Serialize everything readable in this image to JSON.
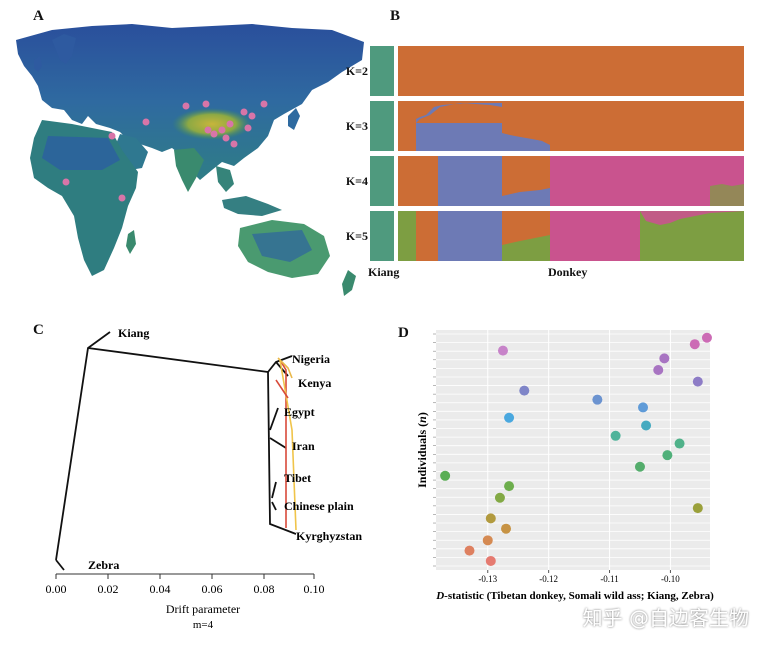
{
  "panels": {
    "a": "A",
    "b": "B",
    "c": "C",
    "d": "D"
  },
  "structure": {
    "k_labels": [
      "K=2",
      "K=3",
      "K=4",
      "K=5"
    ],
    "group_labels": {
      "kiang": "Kiang",
      "donkey": "Donkey"
    },
    "colors": {
      "kiang": "#4f9a7e",
      "orange": "#cc6d35",
      "blue": "#6d7ab5",
      "pink": "#c9538e",
      "green": "#7d9e42"
    }
  },
  "tree": {
    "taxa": [
      "Kiang",
      "Nigeria",
      "Kenya",
      "Egypt",
      "Iran",
      "Tibet",
      "Chinese plain",
      "Kyrghyzstan",
      "Zebra"
    ],
    "axis_title": "Drift parameter",
    "migration_note": "m=4",
    "ticks": [
      "0.00",
      "0.02",
      "0.04",
      "0.06",
      "0.08",
      "0.10"
    ]
  },
  "dstat": {
    "ylabel_main": "Individuals",
    "ylabel_n": "n",
    "xlabel_main": "D",
    "xlabel_rest": "-statistic (Tibetan donkey, Somali wild ass; Kiang, Zebra)",
    "ticks": [
      "-0.13",
      "-0.12",
      "-0.11",
      "-0.10"
    ]
  },
  "chart_data": {
    "type": "scatter",
    "title": "",
    "xlabel": "D-statistic (Tibetan donkey, Somali wild ass; Kiang, Zebra)",
    "ylabel": "Individuals (n)",
    "xlim": [
      -0.1385,
      -0.0935
    ],
    "points": [
      {
        "x": -0.094,
        "y": 24,
        "color": "#cc6bb5"
      },
      {
        "x": -0.1275,
        "y": 23,
        "color": "#c783c9"
      },
      {
        "x": -0.096,
        "y": 23.5,
        "color": "#cc6bb5"
      },
      {
        "x": -0.101,
        "y": 22.4,
        "color": "#a874c2"
      },
      {
        "x": -0.102,
        "y": 21.5,
        "color": "#a874c2"
      },
      {
        "x": -0.0955,
        "y": 20.6,
        "color": "#8d7cc6"
      },
      {
        "x": -0.124,
        "y": 19.9,
        "color": "#7f85c8"
      },
      {
        "x": -0.112,
        "y": 19.2,
        "color": "#6b93d0"
      },
      {
        "x": -0.1045,
        "y": 18.6,
        "color": "#5f9bd8"
      },
      {
        "x": -0.1265,
        "y": 17.8,
        "color": "#4aa8df"
      },
      {
        "x": -0.104,
        "y": 17.2,
        "color": "#45aac0"
      },
      {
        "x": -0.109,
        "y": 16.4,
        "color": "#4fb39a"
      },
      {
        "x": -0.0985,
        "y": 15.8,
        "color": "#50b28a"
      },
      {
        "x": -0.1005,
        "y": 14.9,
        "color": "#50b07a"
      },
      {
        "x": -0.105,
        "y": 14.0,
        "color": "#54ad6c"
      },
      {
        "x": -0.137,
        "y": 13.3,
        "color": "#5aae55"
      },
      {
        "x": -0.1265,
        "y": 12.5,
        "color": "#6dae4d"
      },
      {
        "x": -0.128,
        "y": 11.6,
        "color": "#82a944"
      },
      {
        "x": -0.0955,
        "y": 10.8,
        "color": "#9aa03a"
      },
      {
        "x": -0.1295,
        "y": 10.0,
        "color": "#b29a3e"
      },
      {
        "x": -0.127,
        "y": 9.2,
        "color": "#c79344"
      },
      {
        "x": -0.13,
        "y": 8.3,
        "color": "#d58a52"
      },
      {
        "x": -0.133,
        "y": 7.5,
        "color": "#de8060"
      },
      {
        "x": -0.1295,
        "y": 6.7,
        "color": "#e57a70"
      }
    ],
    "ylim": [
      6,
      24.6
    ],
    "ticks": [
      -0.13,
      -0.12,
      -0.11,
      -0.1
    ]
  },
  "map": {
    "sample_color": "#d875a8"
  },
  "watermark": "知乎 @自边客生物"
}
